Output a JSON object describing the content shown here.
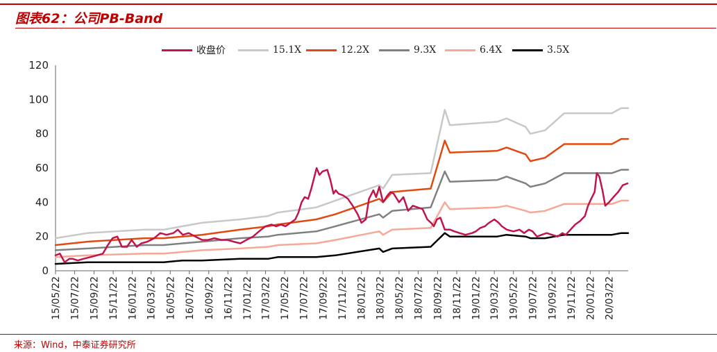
{
  "header": {
    "title": "图表62：公司PB-Band"
  },
  "footer": {
    "source": "来源：Wind，中泰证券研究所"
  },
  "chart_data": {
    "type": "line",
    "title": "图表62：公司PB-Band",
    "xlabel": "",
    "ylabel": "",
    "ylim": [
      0,
      120
    ],
    "yticks": [
      0,
      20,
      40,
      60,
      80,
      100,
      120
    ],
    "xlim": [
      "2015-05-22",
      "2020-05-22"
    ],
    "xticks": [
      "15/05/22",
      "15/07/22",
      "15/09/22",
      "15/11/22",
      "16/01/22",
      "16/03/22",
      "16/05/22",
      "16/07/22",
      "16/09/22",
      "16/11/22",
      "17/01/22",
      "17/03/22",
      "17/05/22",
      "17/07/22",
      "17/09/22",
      "17/11/22",
      "18/01/22",
      "18/03/22",
      "18/05/22",
      "18/07/22",
      "18/09/22",
      "18/11/22",
      "19/01/22",
      "19/03/22",
      "19/05/22",
      "19/07/22",
      "19/09/22",
      "19/11/22",
      "20/01/22",
      "20/03/22"
    ],
    "legend_position": "top",
    "grid": false,
    "series": [
      {
        "name": "收盘价",
        "color": "#c0144a",
        "width": 2.5,
        "x": [
          "2015-05-22",
          "2015-06-05",
          "2015-06-20",
          "2015-07-05",
          "2015-07-15",
          "2015-08-01",
          "2015-08-20",
          "2015-09-10",
          "2015-10-01",
          "2015-10-20",
          "2015-11-05",
          "2015-11-20",
          "2015-12-05",
          "2015-12-20",
          "2016-01-05",
          "2016-01-20",
          "2016-02-05",
          "2016-02-20",
          "2016-03-10",
          "2016-04-01",
          "2016-04-20",
          "2016-05-10",
          "2016-06-01",
          "2016-06-15",
          "2016-07-01",
          "2016-07-20",
          "2016-08-10",
          "2016-09-01",
          "2016-09-20",
          "2016-10-10",
          "2016-11-01",
          "2016-11-20",
          "2016-12-10",
          "2017-01-01",
          "2017-01-20",
          "2017-02-10",
          "2017-03-01",
          "2017-03-22",
          "2017-04-10",
          "2017-04-25",
          "2017-05-10",
          "2017-05-25",
          "2017-06-10",
          "2017-06-25",
          "2017-07-05",
          "2017-07-15",
          "2017-07-25",
          "2017-08-05",
          "2017-08-15",
          "2017-08-25",
          "2017-09-01",
          "2017-09-10",
          "2017-09-20",
          "2017-10-05",
          "2017-10-15",
          "2017-10-25",
          "2017-11-01",
          "2017-11-10",
          "2017-11-25",
          "2017-12-10",
          "2017-12-25",
          "2018-01-10",
          "2018-01-22",
          "2018-02-05",
          "2018-02-15",
          "2018-03-01",
          "2018-03-10",
          "2018-03-20",
          "2018-04-01",
          "2018-04-15",
          "2018-04-25",
          "2018-05-05",
          "2018-05-22",
          "2018-06-05",
          "2018-06-20",
          "2018-07-05",
          "2018-07-20",
          "2018-08-05",
          "2018-08-20",
          "2018-09-01",
          "2018-09-10",
          "2018-09-20",
          "2018-10-01",
          "2018-10-15",
          "2018-11-01",
          "2018-11-15",
          "2018-12-01",
          "2018-12-20",
          "2019-01-10",
          "2019-01-22",
          "2019-02-05",
          "2019-02-20",
          "2019-03-05",
          "2019-03-22",
          "2019-04-05",
          "2019-04-15",
          "2019-05-01",
          "2019-05-22",
          "2019-06-10",
          "2019-06-25",
          "2019-07-10",
          "2019-07-22",
          "2019-08-05",
          "2019-08-20",
          "2019-09-05",
          "2019-09-22",
          "2019-10-10",
          "2019-10-25",
          "2019-11-05",
          "2019-11-20",
          "2019-12-05",
          "2019-12-20",
          "2020-01-05",
          "2020-01-15",
          "2020-01-25",
          "2020-02-05",
          "2020-02-12",
          "2020-02-20",
          "2020-03-01",
          "2020-03-10",
          "2020-03-22",
          "2020-04-05",
          "2020-04-20",
          "2020-05-05",
          "2020-05-20"
        ],
        "values": [
          9,
          10,
          5,
          7,
          7,
          6,
          7,
          8,
          9,
          10,
          15,
          19,
          20,
          14,
          14,
          18,
          14,
          16,
          17,
          19,
          22,
          21,
          22,
          24,
          21,
          22,
          20,
          18,
          18,
          19,
          18,
          18,
          17,
          16,
          18,
          20,
          23,
          26,
          27,
          26,
          27,
          26,
          28,
          30,
          34,
          40,
          43,
          42,
          48,
          55,
          60,
          56,
          58,
          59,
          53,
          45,
          47,
          45,
          44,
          42,
          38,
          33,
          28,
          30,
          42,
          47,
          43,
          49,
          40,
          44,
          46,
          45,
          40,
          43,
          35,
          38,
          37,
          36,
          30,
          28,
          26,
          30,
          31,
          24,
          24,
          23,
          22,
          21,
          22,
          23,
          25,
          26,
          28,
          30,
          28,
          26,
          24,
          23,
          24,
          22,
          24,
          23,
          20,
          21,
          22,
          21,
          20,
          22,
          21,
          24,
          27,
          29,
          32,
          38,
          42,
          46,
          57,
          55,
          47,
          38,
          40,
          43,
          46,
          50,
          51
        ]
      },
      {
        "name": "15.1X",
        "color": "#c8c8c8",
        "width": 2.5,
        "x": [
          "2015-05-22",
          "2015-09-01",
          "2016-03-01",
          "2016-05-01",
          "2016-06-30",
          "2016-08-31",
          "2016-12-31",
          "2017-03-31",
          "2017-04-30",
          "2017-08-31",
          "2017-10-31",
          "2018-03-20",
          "2018-04-01",
          "2018-04-30",
          "2018-08-31",
          "2018-10-15",
          "2018-10-31",
          "2019-03-31",
          "2019-04-30",
          "2019-06-30",
          "2019-07-15",
          "2019-08-31",
          "2019-10-31",
          "2020-03-31",
          "2020-04-30",
          "2020-05-22"
        ],
        "values": [
          19,
          22,
          24,
          24,
          26,
          28,
          30,
          32,
          34,
          37,
          41,
          50,
          48,
          56,
          57,
          94,
          85,
          87,
          89,
          84,
          80,
          82,
          92,
          92,
          95,
          95
        ]
      },
      {
        "name": "12.2X",
        "color": "#e04a10",
        "width": 2.5,
        "x": [
          "2015-05-22",
          "2015-09-01",
          "2016-03-01",
          "2016-05-01",
          "2016-06-30",
          "2016-08-31",
          "2016-12-31",
          "2017-03-31",
          "2017-04-30",
          "2017-08-31",
          "2017-10-31",
          "2018-03-20",
          "2018-04-01",
          "2018-04-30",
          "2018-08-31",
          "2018-10-15",
          "2018-10-31",
          "2019-03-31",
          "2019-04-30",
          "2019-06-30",
          "2019-07-15",
          "2019-08-31",
          "2019-10-31",
          "2020-03-31",
          "2020-04-30",
          "2020-05-22"
        ],
        "values": [
          15,
          17,
          19,
          19,
          20,
          21,
          24,
          26,
          27,
          30,
          33,
          42,
          40,
          46,
          48,
          76,
          69,
          70,
          72,
          68,
          64,
          66,
          74,
          74,
          77,
          77
        ]
      },
      {
        "name": "9.3X",
        "color": "#808080",
        "width": 2.5,
        "x": [
          "2015-05-22",
          "2015-09-01",
          "2016-03-01",
          "2016-05-01",
          "2016-06-30",
          "2016-08-31",
          "2016-12-31",
          "2017-03-31",
          "2017-04-30",
          "2017-08-31",
          "2017-10-31",
          "2018-03-20",
          "2018-04-01",
          "2018-04-30",
          "2018-08-31",
          "2018-10-15",
          "2018-10-31",
          "2019-03-31",
          "2019-04-30",
          "2019-06-30",
          "2019-07-15",
          "2019-08-31",
          "2019-10-31",
          "2020-03-31",
          "2020-04-30",
          "2020-05-22"
        ],
        "values": [
          12,
          13,
          15,
          15,
          16,
          17,
          19,
          20,
          21,
          23,
          26,
          33,
          31,
          35,
          37,
          58,
          52,
          53,
          55,
          51,
          49,
          51,
          57,
          57,
          59,
          59
        ]
      },
      {
        "name": "6.4X",
        "color": "#f6a896",
        "width": 2.5,
        "x": [
          "2015-05-22",
          "2015-09-01",
          "2016-03-01",
          "2016-05-01",
          "2016-06-30",
          "2016-08-31",
          "2016-12-31",
          "2017-03-31",
          "2017-04-30",
          "2017-08-31",
          "2017-10-31",
          "2018-03-20",
          "2018-04-01",
          "2018-04-30",
          "2018-08-31",
          "2018-10-15",
          "2018-10-31",
          "2019-03-31",
          "2019-04-30",
          "2019-06-30",
          "2019-07-15",
          "2019-08-31",
          "2019-10-31",
          "2020-03-31",
          "2020-04-30",
          "2020-05-22"
        ],
        "values": [
          8,
          9,
          10,
          10,
          11,
          12,
          13,
          14,
          15,
          16,
          18,
          23,
          21,
          24,
          25,
          40,
          36,
          37,
          38,
          35,
          34,
          35,
          39,
          39,
          41,
          41
        ]
      },
      {
        "name": "3.5X",
        "color": "#000000",
        "width": 2.5,
        "x": [
          "2015-05-22",
          "2015-09-01",
          "2016-03-01",
          "2016-05-01",
          "2016-06-30",
          "2016-08-31",
          "2016-12-31",
          "2017-03-31",
          "2017-04-30",
          "2017-08-31",
          "2017-10-31",
          "2018-03-20",
          "2018-04-01",
          "2018-04-30",
          "2018-08-31",
          "2018-10-15",
          "2018-10-31",
          "2019-03-31",
          "2019-04-30",
          "2019-06-30",
          "2019-07-15",
          "2019-08-31",
          "2019-10-31",
          "2020-03-31",
          "2020-04-30",
          "2020-05-22"
        ],
        "values": [
          4,
          5,
          5,
          5,
          6,
          6,
          7,
          7,
          8,
          8,
          9,
          13,
          11,
          13,
          14,
          22,
          20,
          20,
          21,
          20,
          19,
          19,
          21,
          21,
          22,
          22
        ]
      }
    ]
  }
}
